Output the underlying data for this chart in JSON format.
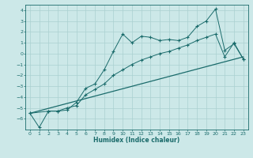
{
  "xlabel": "Humidex (Indice chaleur)",
  "xlim": [
    -0.5,
    23.5
  ],
  "ylim": [
    -7,
    4.5
  ],
  "background_color": "#cce8e8",
  "grid_color": "#aad0d0",
  "line_color": "#1a6b6b",
  "x_ticks": [
    0,
    1,
    2,
    3,
    4,
    5,
    6,
    7,
    8,
    9,
    10,
    11,
    12,
    13,
    14,
    15,
    16,
    17,
    18,
    19,
    20,
    21,
    22,
    23
  ],
  "y_ticks": [
    -6,
    -5,
    -4,
    -3,
    -2,
    -1,
    0,
    1,
    2,
    3,
    4
  ],
  "series1_x": [
    0,
    1,
    2,
    3,
    4,
    5,
    6,
    7,
    8,
    9,
    10,
    11,
    12,
    13,
    14,
    15,
    16,
    17,
    18,
    19,
    20,
    21,
    22,
    23
  ],
  "series1_y": [
    -5.5,
    -6.8,
    -5.3,
    -5.3,
    -5.2,
    -4.5,
    -3.2,
    -2.8,
    -1.5,
    0.2,
    1.8,
    1.0,
    1.6,
    1.5,
    1.2,
    1.3,
    1.2,
    1.5,
    2.5,
    3.0,
    4.1,
    0.3,
    0.9,
    -0.5
  ],
  "series2_x": [
    0,
    2,
    3,
    4,
    5,
    6,
    7,
    8,
    9,
    10,
    11,
    12,
    13,
    14,
    15,
    16,
    17,
    18,
    19,
    20,
    21,
    22,
    23
  ],
  "series2_y": [
    -5.5,
    -5.3,
    -5.3,
    -5.0,
    -4.8,
    -3.8,
    -3.3,
    -2.8,
    -2.0,
    -1.5,
    -1.0,
    -0.6,
    -0.3,
    0.0,
    0.2,
    0.5,
    0.8,
    1.2,
    1.5,
    1.8,
    -0.3,
    1.0,
    -0.5
  ],
  "trend_x": [
    0,
    23
  ],
  "trend_y": [
    -5.5,
    -0.3
  ]
}
